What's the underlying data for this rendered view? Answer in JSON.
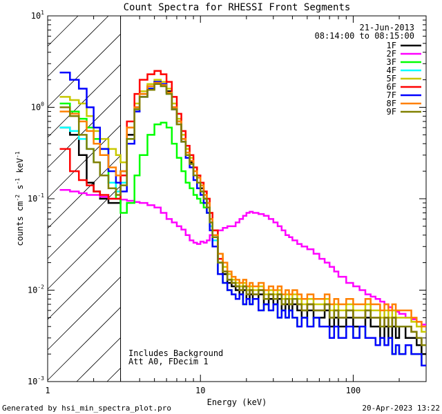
{
  "chart_data": {
    "type": "line",
    "title": "Count Spectra for RHESSI Front Segments",
    "xlabel": "Energy (keV)",
    "ylabel_main": "counts cm",
    "ylabel_exp1": "-2",
    "ylabel_mid1": " s",
    "ylabel_exp2": "-1",
    "ylabel_mid2": " keV",
    "ylabel_exp3": "-1",
    "x_scale": "log",
    "y_scale": "log",
    "xlim": [
      1,
      300
    ],
    "ylim": [
      0.001,
      10
    ],
    "x_ticks": [
      {
        "value": 1,
        "label": "1"
      },
      {
        "value": 10,
        "label": "10"
      },
      {
        "value": 100,
        "label": "100"
      }
    ],
    "y_ticks": [
      {
        "value": 10,
        "mant": "10",
        "exp": "1"
      },
      {
        "value": 1,
        "mant": "10",
        "exp": "0"
      },
      {
        "value": 0.1,
        "mant": "10",
        "exp": "-1"
      },
      {
        "value": 0.01,
        "mant": "10",
        "exp": "-2"
      },
      {
        "value": 0.001,
        "mant": "10",
        "exp": "-3"
      }
    ],
    "attenuator_threshold_keV": 3,
    "legend_position": "top-right",
    "legend_date": "21-Jun-2013",
    "legend_time": "08:14:00 to 08:15:00",
    "annotation_line1": "Includes Background",
    "annotation_line2": "Att A0, FDecim 1",
    "footer_left": "Generated by hsi_min_spectra_plot.pro",
    "footer_right": "20-Apr-2023 13:22",
    "energies": [
      1.2,
      1.4,
      1.6,
      1.8,
      2.0,
      2.2,
      2.5,
      2.8,
      3.0,
      3.3,
      3.7,
      4.0,
      4.5,
      5.0,
      5.5,
      6.0,
      6.5,
      7.0,
      7.5,
      8.0,
      8.5,
      9.0,
      9.5,
      10.0,
      10.5,
      11.0,
      11.5,
      12,
      13,
      14,
      15,
      16,
      17,
      18,
      19,
      20,
      21,
      22,
      24,
      26,
      28,
      30,
      32,
      34,
      36,
      38,
      40,
      43,
      46,
      50,
      55,
      60,
      65,
      70,
      75,
      80,
      90,
      100,
      110,
      120,
      130,
      140,
      150,
      160,
      170,
      180,
      190,
      200,
      220,
      240,
      260,
      280,
      300
    ],
    "series": [
      {
        "name": "1F",
        "color": "#000000",
        "values": [
          0.6,
          0.5,
          0.3,
          0.15,
          0.12,
          0.1,
          0.09,
          0.09,
          0.2,
          0.5,
          1.0,
          1.4,
          1.7,
          1.9,
          1.8,
          1.5,
          1.0,
          0.7,
          0.45,
          0.3,
          0.25,
          0.18,
          0.15,
          0.13,
          0.1,
          0.09,
          0.06,
          0.04,
          0.02,
          0.015,
          0.012,
          0.011,
          0.01,
          0.009,
          0.01,
          0.008,
          0.009,
          0.008,
          0.009,
          0.007,
          0.008,
          0.007,
          0.008,
          0.006,
          0.007,
          0.006,
          0.007,
          0.006,
          0.005,
          0.006,
          0.005,
          0.005,
          0.006,
          0.004,
          0.005,
          0.004,
          0.005,
          0.004,
          0.004,
          0.005,
          0.004,
          0.004,
          0.003,
          0.004,
          0.003,
          0.004,
          0.003,
          0.004,
          0.003,
          0.003,
          0.0025,
          0.002,
          0.0015
        ]
      },
      {
        "name": "2F",
        "color": "#ff00ff",
        "values": [
          0.125,
          0.12,
          0.115,
          0.11,
          0.11,
          0.105,
          0.1,
          0.1,
          0.098,
          0.095,
          0.092,
          0.09,
          0.085,
          0.08,
          0.07,
          0.06,
          0.055,
          0.05,
          0.046,
          0.04,
          0.035,
          0.033,
          0.032,
          0.034,
          0.033,
          0.035,
          0.04,
          0.045,
          0.045,
          0.048,
          0.05,
          0.05,
          0.055,
          0.06,
          0.065,
          0.07,
          0.072,
          0.07,
          0.068,
          0.065,
          0.06,
          0.055,
          0.05,
          0.045,
          0.04,
          0.038,
          0.035,
          0.032,
          0.03,
          0.028,
          0.025,
          0.022,
          0.02,
          0.018,
          0.016,
          0.014,
          0.012,
          0.011,
          0.01,
          0.009,
          0.0085,
          0.008,
          0.0075,
          0.007,
          0.0065,
          0.006,
          0.0058,
          0.0055,
          0.005,
          0.0048,
          0.0045,
          0.0042,
          0.004
        ]
      },
      {
        "name": "3F",
        "color": "#00ff00",
        "values": [
          1.1,
          0.9,
          0.75,
          0.6,
          0.45,
          0.35,
          0.15,
          0.1,
          0.07,
          0.09,
          0.18,
          0.3,
          0.5,
          0.65,
          0.68,
          0.6,
          0.4,
          0.28,
          0.2,
          0.15,
          0.13,
          0.11,
          0.1,
          0.09,
          0.08,
          0.07,
          0.05,
          0.03,
          0.015,
          0.012,
          0.01,
          0.009,
          0.008,
          0.009,
          0.007,
          0.008,
          0.007,
          0.008,
          0.006,
          0.007,
          0.006,
          0.007,
          0.005,
          0.006,
          0.005,
          0.006,
          0.005,
          0.004,
          0.005,
          0.004,
          0.005,
          0.004,
          0.004,
          0.003,
          0.004,
          0.003,
          0.004,
          0.003,
          0.004,
          0.003,
          0.003,
          0.0025,
          0.003,
          0.0025,
          0.003,
          0.002,
          0.0025,
          0.002,
          0.0025,
          0.002,
          0.002,
          0.0015,
          0.0012
        ]
      },
      {
        "name": "4F",
        "color": "#00ffff",
        "values": [
          0.6,
          0.55,
          0.45,
          0.35,
          0.25,
          0.18,
          0.15,
          0.12,
          0.15,
          0.45,
          0.95,
          1.3,
          1.6,
          1.85,
          1.75,
          1.4,
          0.95,
          0.65,
          0.42,
          0.3,
          0.24,
          0.18,
          0.15,
          0.12,
          0.1,
          0.08,
          0.05,
          0.035,
          0.02,
          0.016,
          0.013,
          0.012,
          0.011,
          0.01,
          0.011,
          0.009,
          0.01,
          0.009,
          0.01,
          0.008,
          0.009,
          0.008,
          0.009,
          0.007,
          0.008,
          0.007,
          0.008,
          0.007,
          0.006,
          0.007,
          0.006,
          0.006,
          0.007,
          0.005,
          0.006,
          0.005,
          0.006,
          0.005,
          0.005,
          0.006,
          0.005,
          0.005,
          0.004,
          0.005,
          0.004,
          0.005,
          0.004,
          0.004,
          0.004,
          0.0035,
          0.003,
          0.0025,
          0.002
        ]
      },
      {
        "name": "5F",
        "color": "#c8c800",
        "values": [
          1.3,
          1.2,
          1.1,
          0.8,
          0.55,
          0.45,
          0.35,
          0.3,
          0.25,
          0.6,
          1.1,
          1.5,
          1.8,
          2.0,
          1.9,
          1.6,
          1.1,
          0.75,
          0.5,
          0.35,
          0.28,
          0.22,
          0.18,
          0.15,
          0.12,
          0.1,
          0.07,
          0.045,
          0.025,
          0.018,
          0.015,
          0.013,
          0.012,
          0.011,
          0.012,
          0.01,
          0.011,
          0.01,
          0.011,
          0.009,
          0.01,
          0.009,
          0.01,
          0.008,
          0.009,
          0.008,
          0.009,
          0.008,
          0.007,
          0.008,
          0.007,
          0.007,
          0.008,
          0.006,
          0.007,
          0.006,
          0.007,
          0.006,
          0.006,
          0.007,
          0.006,
          0.006,
          0.005,
          0.006,
          0.005,
          0.006,
          0.005,
          0.005,
          0.005,
          0.0045,
          0.004,
          0.0035,
          0.003
        ]
      },
      {
        "name": "6F",
        "color": "#ff0000",
        "values": [
          0.35,
          0.2,
          0.16,
          0.14,
          0.12,
          0.11,
          0.1,
          0.1,
          0.18,
          0.7,
          1.4,
          2.0,
          2.3,
          2.5,
          2.3,
          1.9,
          1.3,
          0.85,
          0.55,
          0.38,
          0.3,
          0.22,
          0.18,
          0.15,
          0.12,
          0.1,
          0.07,
          0.045,
          0.022,
          0.016,
          0.013,
          0.012,
          0.011,
          0.01,
          0.011,
          0.009,
          0.01,
          0.009,
          0.01,
          0.008,
          0.009,
          0.008,
          0.009,
          0.007,
          0.008,
          0.007,
          0.008,
          0.007,
          0.006,
          0.007,
          0.006,
          0.006,
          0.007,
          0.005,
          0.006,
          0.005,
          0.006,
          0.005,
          0.005,
          0.006,
          0.005,
          0.005,
          0.004,
          0.005,
          0.004,
          0.005,
          0.004,
          0.004,
          0.004,
          0.0035,
          0.003,
          0.0025,
          0.002
        ]
      },
      {
        "name": "7F",
        "color": "#0000ff",
        "values": [
          2.4,
          2.0,
          1.6,
          1.0,
          0.6,
          0.35,
          0.2,
          0.15,
          0.12,
          0.4,
          0.9,
          1.3,
          1.6,
          1.9,
          1.8,
          1.45,
          0.95,
          0.65,
          0.42,
          0.28,
          0.22,
          0.16,
          0.13,
          0.11,
          0.09,
          0.07,
          0.045,
          0.03,
          0.015,
          0.012,
          0.01,
          0.009,
          0.008,
          0.009,
          0.007,
          0.008,
          0.007,
          0.008,
          0.006,
          0.007,
          0.006,
          0.007,
          0.005,
          0.006,
          0.005,
          0.006,
          0.005,
          0.004,
          0.005,
          0.004,
          0.005,
          0.004,
          0.004,
          0.003,
          0.004,
          0.003,
          0.004,
          0.003,
          0.004,
          0.003,
          0.003,
          0.0025,
          0.003,
          0.0025,
          0.003,
          0.002,
          0.0025,
          0.002,
          0.0025,
          0.002,
          0.002,
          0.0015,
          0.0012
        ]
      },
      {
        "name": "8F",
        "color": "#ff8000",
        "values": [
          0.9,
          0.85,
          0.7,
          0.55,
          0.4,
          0.3,
          0.22,
          0.18,
          0.2,
          0.6,
          1.0,
          1.4,
          1.7,
          1.85,
          1.75,
          1.45,
          1.0,
          0.7,
          0.45,
          0.32,
          0.26,
          0.2,
          0.17,
          0.14,
          0.11,
          0.09,
          0.06,
          0.04,
          0.025,
          0.02,
          0.016,
          0.014,
          0.013,
          0.012,
          0.013,
          0.011,
          0.012,
          0.011,
          0.012,
          0.01,
          0.011,
          0.01,
          0.011,
          0.009,
          0.01,
          0.009,
          0.01,
          0.009,
          0.008,
          0.009,
          0.008,
          0.008,
          0.009,
          0.007,
          0.008,
          0.007,
          0.008,
          0.007,
          0.007,
          0.008,
          0.007,
          0.007,
          0.006,
          0.007,
          0.006,
          0.007,
          0.006,
          0.006,
          0.006,
          0.005,
          0.0045,
          0.004,
          0.0035
        ]
      },
      {
        "name": "9F",
        "color": "#808000",
        "values": [
          1.0,
          0.8,
          0.5,
          0.35,
          0.25,
          0.18,
          0.13,
          0.11,
          0.14,
          0.45,
          0.95,
          1.3,
          1.55,
          1.8,
          1.7,
          1.4,
          0.95,
          0.65,
          0.42,
          0.3,
          0.24,
          0.18,
          0.15,
          0.12,
          0.1,
          0.08,
          0.055,
          0.038,
          0.02,
          0.016,
          0.013,
          0.012,
          0.011,
          0.01,
          0.011,
          0.009,
          0.01,
          0.009,
          0.01,
          0.008,
          0.009,
          0.008,
          0.009,
          0.007,
          0.008,
          0.007,
          0.008,
          0.007,
          0.006,
          0.007,
          0.006,
          0.006,
          0.007,
          0.005,
          0.006,
          0.005,
          0.006,
          0.005,
          0.005,
          0.006,
          0.005,
          0.005,
          0.004,
          0.005,
          0.004,
          0.005,
          0.004,
          0.004,
          0.004,
          0.0035,
          0.003,
          0.0025,
          0.002
        ]
      }
    ]
  }
}
